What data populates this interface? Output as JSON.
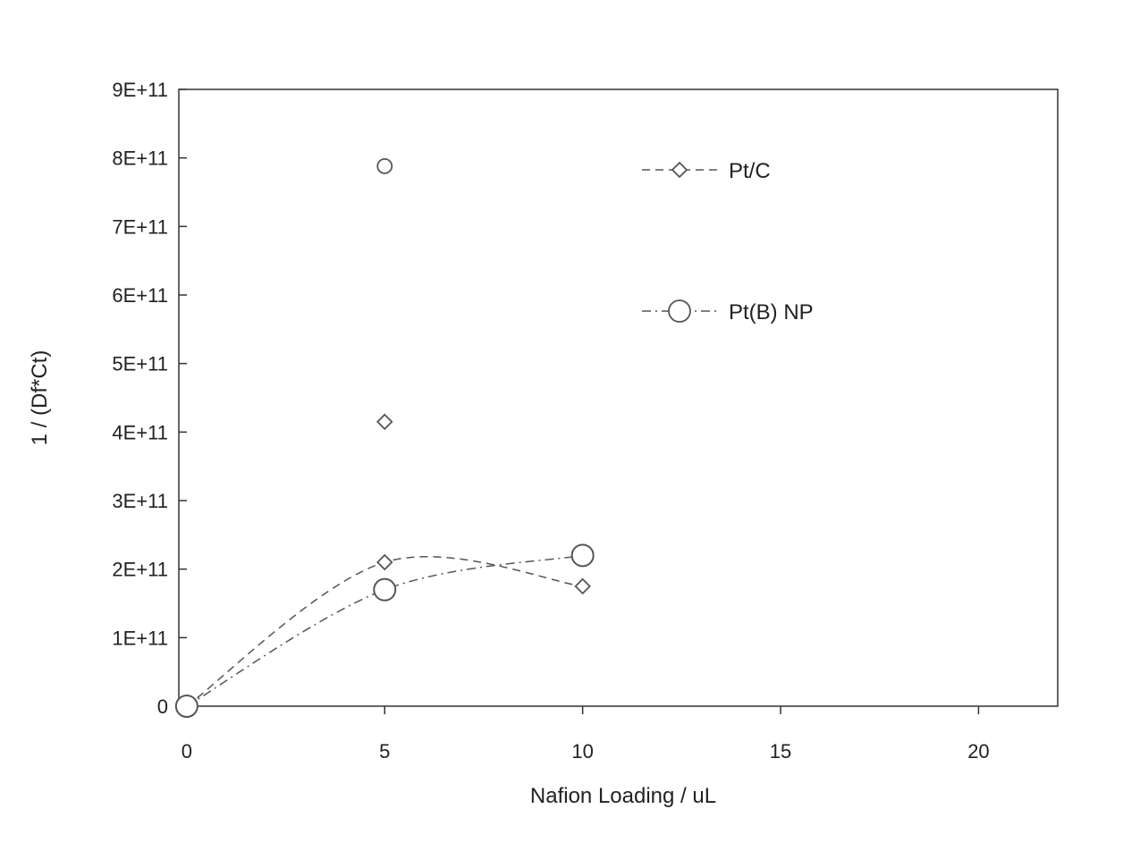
{
  "chart_data": {
    "type": "scatter",
    "title": "",
    "xlabel": "Nafion Loading / uL",
    "ylabel": "1 / (Df*Ct)",
    "xlim": [
      -0.2,
      22
    ],
    "ylim": [
      0,
      900000000000.0
    ],
    "x_ticks": [
      0,
      5,
      10,
      15,
      20
    ],
    "x_tick_labels": [
      "0",
      "5",
      "10",
      "15",
      "20"
    ],
    "y_ticks": [
      0,
      100000000000.0,
      200000000000.0,
      300000000000.0,
      400000000000.0,
      500000000000.0,
      600000000000.0,
      700000000000.0,
      800000000000.0,
      900000000000.0
    ],
    "y_tick_labels": [
      "0",
      "1E+11",
      "2E+11",
      "3E+11",
      "4E+11",
      "5E+11",
      "6E+11",
      "7E+11",
      "8E+11",
      "9E+11"
    ],
    "grid": false,
    "legend_position": "top-right",
    "series": [
      {
        "name": "Pt/C",
        "marker": "diamond",
        "line": "dashed",
        "points": [
          [
            0,
            0
          ],
          [
            5,
            210000000000.0
          ],
          [
            10,
            175000000000.0
          ]
        ],
        "extra_points": [
          [
            5,
            415000000000.0
          ]
        ]
      },
      {
        "name": "Pt(B) NP",
        "marker": "circle",
        "line": "dash-dot",
        "points": [
          [
            0,
            0
          ],
          [
            5,
            170000000000.0
          ],
          [
            10,
            220000000000.0
          ]
        ],
        "extra_points": [
          [
            5,
            788000000000.0
          ]
        ]
      }
    ],
    "colors": {
      "stroke": "#555555",
      "marker_fill": "#ffffff",
      "axis": "#333333"
    }
  }
}
